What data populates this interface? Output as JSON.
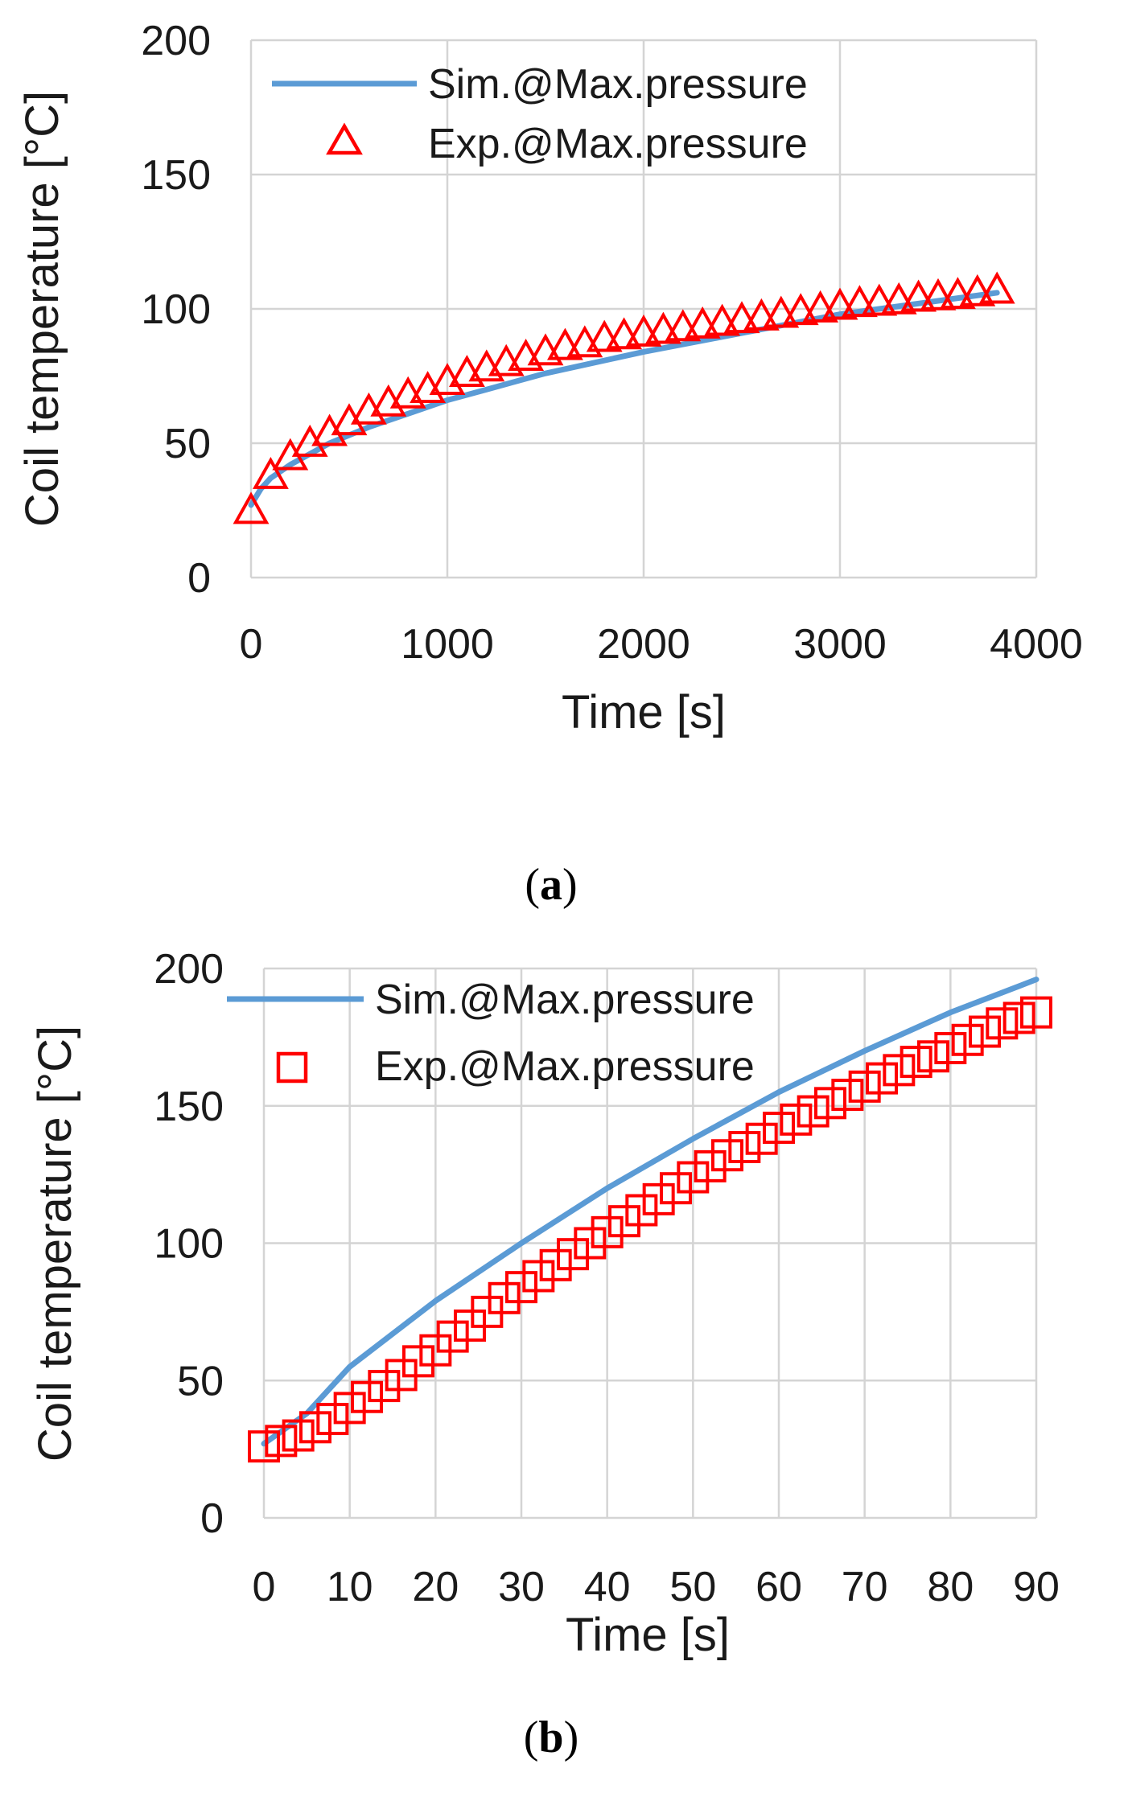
{
  "chart_data": [
    {
      "type": "line",
      "panel": "a",
      "panel_label": "(a)",
      "panel_letter": "a",
      "xlabel": "Time [s]",
      "ylabel": "Coil temperature [°C]",
      "xlim": [
        0,
        4000
      ],
      "ylim": [
        0,
        200
      ],
      "xticks": [
        0,
        1000,
        2000,
        3000,
        4000
      ],
      "yticks": [
        0,
        50,
        100,
        150,
        200
      ],
      "grid": true,
      "legend_position": "top-left",
      "series": [
        {
          "name": "Sim.@Max.pressure",
          "kind": "line",
          "color": "#5b9bd5",
          "x": [
            0,
            50,
            100,
            200,
            300,
            400,
            500,
            600,
            800,
            1000,
            1200,
            1500,
            2000,
            2500,
            3000,
            3500,
            3800
          ],
          "y": [
            27,
            33,
            37,
            42,
            46,
            50,
            53,
            56,
            61,
            66,
            70,
            76,
            84,
            91,
            98,
            103,
            106
          ]
        },
        {
          "name": "Exp.@Max.pressure",
          "kind": "marker",
          "marker": "triangle",
          "color": "#ff0000",
          "x": [
            0,
            100,
            200,
            300,
            400,
            500,
            600,
            700,
            800,
            900,
            1000,
            1100,
            1200,
            1300,
            1400,
            1500,
            1600,
            1700,
            1800,
            1900,
            2000,
            2100,
            2200,
            2300,
            2400,
            2500,
            2600,
            2700,
            2800,
            2900,
            3000,
            3100,
            3200,
            3300,
            3400,
            3500,
            3600,
            3700,
            3800
          ],
          "y": [
            25,
            38,
            45,
            50,
            54,
            58,
            62,
            65,
            68,
            70,
            73,
            76,
            78,
            80,
            82,
            84,
            86,
            87,
            89,
            90,
            91,
            92,
            93,
            94,
            95,
            96,
            97,
            98,
            99,
            100,
            101,
            102,
            102.5,
            103,
            104,
            104.5,
            105,
            106,
            107
          ]
        }
      ]
    },
    {
      "type": "line",
      "panel": "b",
      "panel_label": "(b)",
      "panel_letter": "b",
      "xlabel": "Time [s]",
      "ylabel": "Coil temperature [°C]",
      "xlim": [
        0,
        90
      ],
      "ylim": [
        0,
        200
      ],
      "xticks": [
        0,
        10,
        20,
        30,
        40,
        50,
        60,
        70,
        80,
        90
      ],
      "yticks": [
        0,
        50,
        100,
        150,
        200
      ],
      "grid": true,
      "legend_position": "top",
      "series": [
        {
          "name": "Sim.@Max.pressure",
          "kind": "line",
          "color": "#5b9bd5",
          "x": [
            0,
            5,
            10,
            20,
            30,
            40,
            50,
            60,
            70,
            80,
            90
          ],
          "y": [
            27,
            38,
            55,
            79,
            100,
            120,
            138,
            155,
            170,
            184,
            196
          ]
        },
        {
          "name": "Exp.@Max.pressure",
          "kind": "marker",
          "marker": "square",
          "color": "#ff0000",
          "x": [
            0,
            2,
            4,
            6,
            8,
            10,
            12,
            14,
            16,
            18,
            20,
            22,
            24,
            26,
            28,
            30,
            32,
            34,
            36,
            38,
            40,
            42,
            44,
            46,
            48,
            50,
            52,
            54,
            56,
            58,
            60,
            62,
            64,
            66,
            68,
            70,
            72,
            74,
            76,
            78,
            80,
            82,
            84,
            86,
            88,
            90
          ],
          "y": [
            26,
            28,
            30,
            33,
            36,
            40,
            44,
            48,
            52,
            57,
            61,
            66,
            70,
            75,
            80,
            84,
            88,
            92,
            96,
            100,
            104,
            108,
            112,
            116,
            120,
            124,
            128,
            132,
            135,
            138,
            142,
            145,
            148,
            151,
            154,
            157,
            160,
            163,
            166,
            168,
            171,
            174,
            177,
            180,
            182,
            184
          ]
        }
      ]
    }
  ]
}
